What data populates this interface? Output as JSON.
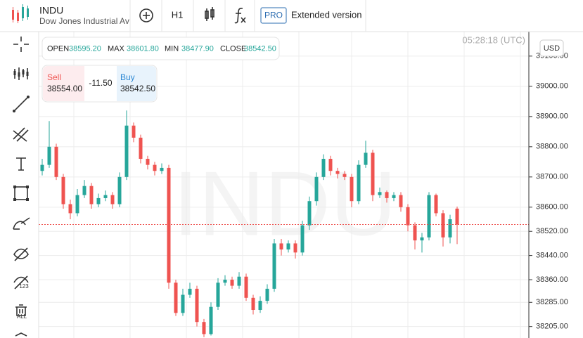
{
  "header": {
    "symbol": "INDU",
    "description": "Dow Jones Industrial Ave",
    "timeframe": "H1",
    "pro_badge": "PRO",
    "extended": "Extended version"
  },
  "left_toolbar": {
    "hide_label": "123",
    "remove_label": "ALL"
  },
  "ohlc_info": {
    "open_label": "OPEN",
    "open": "38595.20",
    "max_label": "MAX",
    "max": "38601.80",
    "min_label": "MIN",
    "min": "38477.90",
    "close_label": "CLOSE",
    "close": "38542.50"
  },
  "trade": {
    "sell_label": "Sell",
    "sell": "38554.00",
    "spread": "-11.50",
    "buy_label": "Buy",
    "buy": "38542.50"
  },
  "clock": "05:28:18 (UTC)",
  "currency": "USD",
  "watermark": "INDU",
  "chart_data": {
    "type": "candlestick",
    "up_color": "#26a69a",
    "down_color": "#ef5350",
    "ylim": [
      38167,
      39181
    ],
    "yticks": [
      {
        "value": 39100,
        "label": "39100.00"
      },
      {
        "value": 39000,
        "label": "39000.00"
      },
      {
        "value": 38900,
        "label": "38900.00"
      },
      {
        "value": 38800,
        "label": "38800.00"
      },
      {
        "value": 38700,
        "label": "38700.00"
      },
      {
        "value": 38600,
        "label": "38600.00"
      },
      {
        "value": 38520,
        "label": "38520.00"
      },
      {
        "value": 38440,
        "label": "38440.00"
      },
      {
        "value": 38360,
        "label": "38360.00"
      },
      {
        "value": 38285,
        "label": "38285.00"
      },
      {
        "value": 38205,
        "label": "38205.00"
      }
    ],
    "grid": true,
    "open": [
      38720,
      38740,
      38800,
      38700,
      38610,
      38580,
      38640,
      38670,
      38610,
      38630,
      38640,
      38610,
      38700,
      38870,
      38830,
      38760,
      38740,
      38720,
      38730,
      38350,
      38250,
      38310,
      38330,
      38220,
      38180,
      38270,
      38350,
      38360,
      38340,
      38370,
      38300,
      38260,
      38290,
      38330,
      38480,
      38460,
      38480,
      38450,
      38540,
      38620,
      38700,
      38760,
      38720,
      38710,
      38700,
      38620,
      38740,
      38780,
      38640,
      38650,
      38630,
      38640,
      38600,
      38540,
      38490,
      38500,
      38640,
      38580,
      38500,
      38595.2
    ],
    "high": [
      38760,
      38885,
      38810,
      38710,
      38625,
      38660,
      38690,
      38680,
      38645,
      38655,
      38650,
      38715,
      38920,
      38880,
      38840,
      38770,
      38750,
      38745,
      38740,
      38360,
      38330,
      38350,
      38340,
      38230,
      38285,
      38365,
      38375,
      38370,
      38385,
      38380,
      38310,
      38305,
      38345,
      38495,
      38495,
      38490,
      38490,
      38555,
      38635,
      38715,
      38775,
      38770,
      38730,
      38720,
      38710,
      38755,
      38820,
      38790,
      38665,
      38655,
      38650,
      38650,
      38610,
      38550,
      38515,
      38650,
      38645,
      38590,
      38575,
      38601.8
    ],
    "low": [
      38705,
      38730,
      38690,
      38595,
      38560,
      38570,
      38630,
      38595,
      38600,
      38620,
      38595,
      38600,
      38690,
      38815,
      38745,
      38725,
      38705,
      38710,
      38330,
      38240,
      38240,
      38300,
      38205,
      38170,
      38175,
      38260,
      38340,
      38330,
      38330,
      38290,
      38245,
      38250,
      38280,
      38320,
      38440,
      38450,
      38430,
      38440,
      38525,
      38605,
      38690,
      38705,
      38695,
      38690,
      38600,
      38610,
      38730,
      38620,
      38630,
      38615,
      38620,
      38585,
      38520,
      38460,
      38450,
      38490,
      38570,
      38470,
      38480,
      38477.9
    ],
    "close": [
      38740,
      38800,
      38700,
      38610,
      38580,
      38640,
      38670,
      38610,
      38630,
      38640,
      38610,
      38700,
      38870,
      38830,
      38760,
      38740,
      38720,
      38730,
      38350,
      38250,
      38310,
      38330,
      38220,
      38180,
      38270,
      38350,
      38360,
      38340,
      38370,
      38300,
      38260,
      38290,
      38330,
      38480,
      38460,
      38480,
      38450,
      38540,
      38620,
      38700,
      38760,
      38720,
      38710,
      38700,
      38620,
      38740,
      38780,
      38640,
      38650,
      38630,
      38640,
      38600,
      38540,
      38490,
      38500,
      38640,
      38580,
      38500,
      38560,
      38542.5
    ]
  }
}
